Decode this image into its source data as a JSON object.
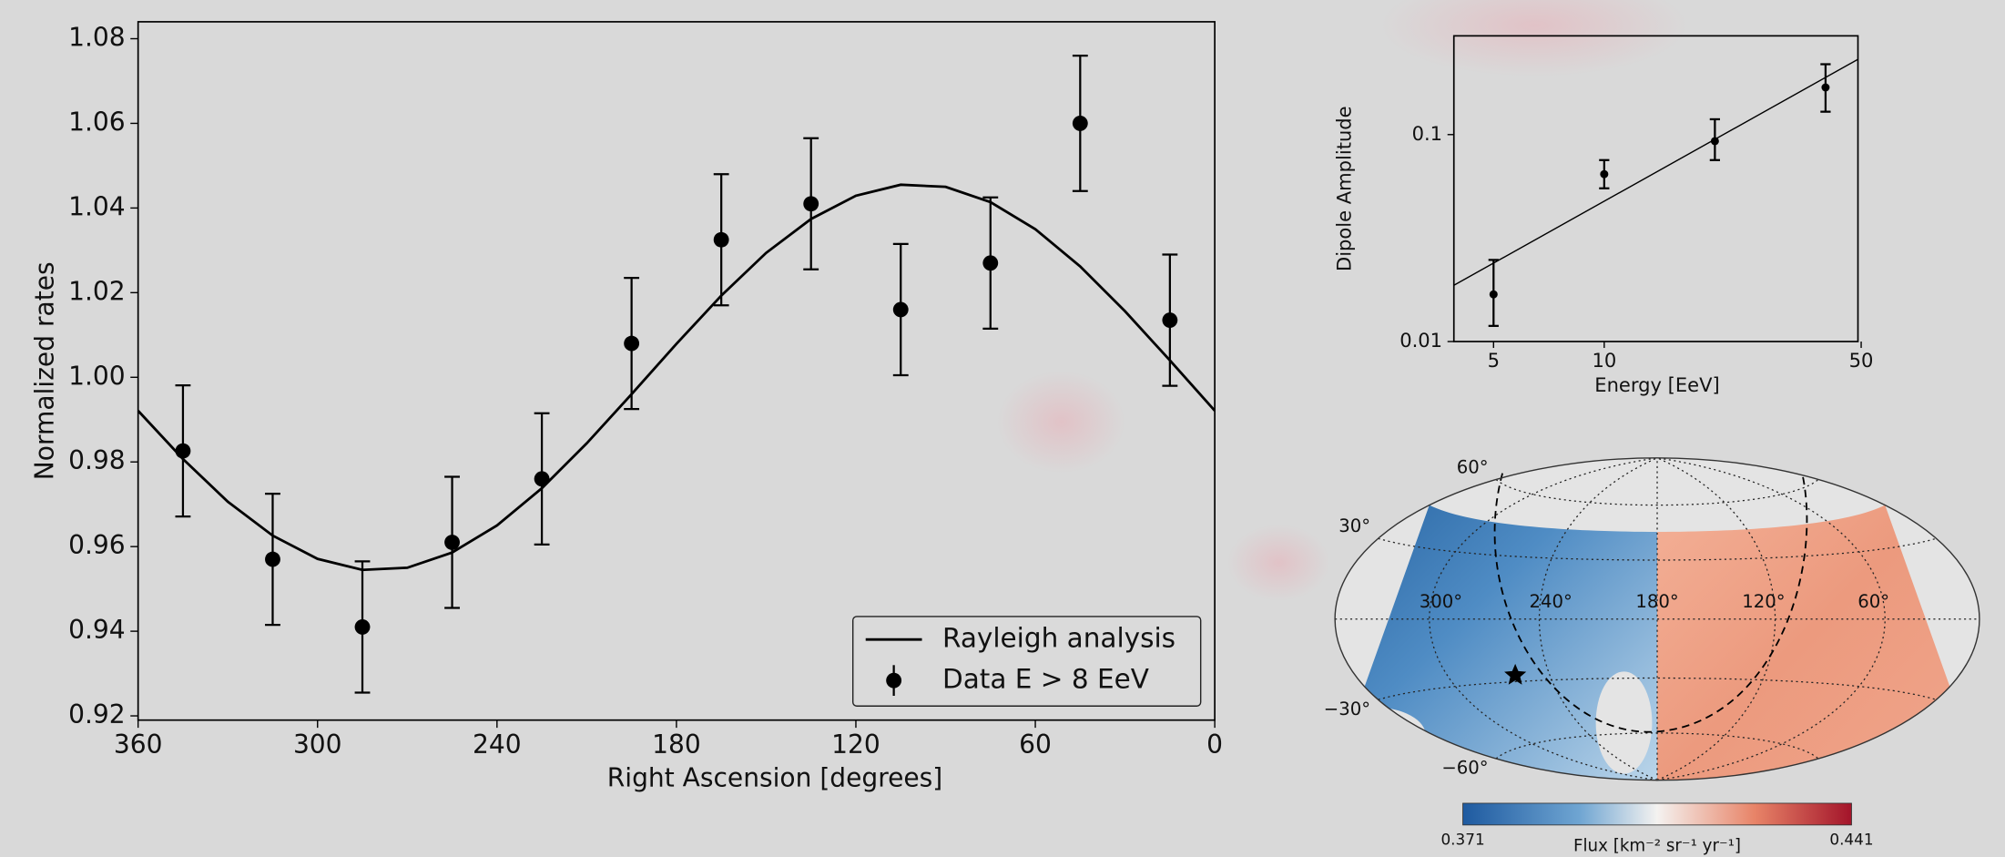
{
  "chart_data": [
    {
      "type": "errorbar",
      "xlabel": "Right Ascension [degrees]",
      "ylabel": "Normalized rates",
      "xlim": [
        360,
        0
      ],
      "ylim": [
        0.919,
        1.084
      ],
      "xticks": [
        360,
        300,
        240,
        180,
        120,
        60,
        0
      ],
      "yticks": [
        0.92,
        0.94,
        0.96,
        0.98,
        {
          "value": 1.0,
          "label": "1.00"
        },
        1.02,
        1.04,
        1.06,
        1.08
      ],
      "legend": "lower right",
      "series": [
        {
          "name": "Rayleigh analysis",
          "type": "line",
          "color": "#000000",
          "x": [
            0,
            15,
            30,
            45,
            60,
            75,
            90,
            105,
            120,
            135,
            150,
            165,
            180,
            195,
            210,
            225,
            240,
            255,
            270,
            285,
            300,
            315,
            330,
            345,
            360
          ],
          "values": [
            0.9921,
            1.004,
            1.0156,
            1.0262,
            1.035,
            1.0414,
            1.045,
            1.0455,
            1.0429,
            1.0374,
            1.0294,
            1.0193,
            1.0079,
            0.996,
            0.9844,
            0.9738,
            0.965,
            0.9586,
            0.955,
            0.9545,
            0.9571,
            0.9626,
            0.9706,
            0.9807,
            0.9921
          ]
        },
        {
          "name": "Data E > 8 EeV",
          "type": "errorbar",
          "color": "#000000",
          "x": [
            345,
            315,
            285,
            255,
            225,
            195,
            165,
            135,
            105,
            75,
            45,
            15
          ],
          "values": [
            0.9826,
            0.957,
            0.941,
            0.961,
            0.976,
            1.008,
            1.0325,
            1.041,
            1.016,
            1.027,
            1.06,
            1.0135
          ],
          "errors": [
            0.0155,
            0.0155,
            0.0155,
            0.0155,
            0.0155,
            0.0155,
            0.0155,
            0.0155,
            0.0155,
            0.0155,
            0.016,
            0.0155
          ]
        }
      ]
    },
    {
      "type": "errorbar",
      "xlabel": "Energy [EeV]",
      "ylabel": "Dipole Amplitude",
      "xscale": "log",
      "yscale": "log",
      "xlim": [
        3.9,
        49
      ],
      "ylim": [
        0.01,
        0.3
      ],
      "xticks": [
        5,
        10,
        50
      ],
      "yticks": [
        0.01,
        0.1
      ],
      "series": [
        {
          "type": "line",
          "color": "#000000",
          "x": [
            3.9,
            49
          ],
          "values": [
            0.0187,
            0.231
          ]
        },
        {
          "type": "errorbar",
          "color": "#000000",
          "x": [
            5,
            10,
            20,
            40
          ],
          "values": [
            0.0169,
            0.0644,
            0.093,
            0.169
          ],
          "lower": [
            0.0119,
            0.055,
            0.0753,
            0.129
          ],
          "upper": [
            0.0248,
            0.0753,
            0.1186,
            0.2188
          ]
        }
      ]
    },
    {
      "type": "map",
      "lon_ticks": [
        {
          "value": 300,
          "label": "300°"
        },
        {
          "value": 240,
          "label": "240°"
        },
        {
          "value": 180,
          "label": "180°"
        },
        {
          "value": 120,
          "label": "120°"
        },
        {
          "value": 60,
          "label": "60°"
        }
      ],
      "lat_ticks": [
        {
          "value": 60,
          "label": "60°"
        },
        {
          "value": 30,
          "label": "30°"
        },
        {
          "value": -30,
          "label": "−30°"
        },
        {
          "value": -60,
          "label": "−60°"
        }
      ],
      "clim": [
        0.371,
        0.441
      ],
      "colorbar_label": "Flux [km⁻² sr⁻¹ yr⁻¹]"
    }
  ]
}
